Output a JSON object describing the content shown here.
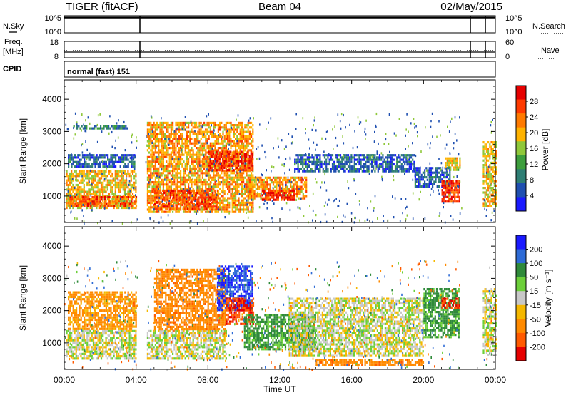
{
  "header": {
    "radar": "TIGER (fitACF)",
    "beam": "Beam 04",
    "date": "02/May/2015"
  },
  "strip_sky": {
    "left_label": "N.Sky",
    "right_label": "N.Search",
    "left_ticks": [
      "10^5",
      "10^0"
    ],
    "right_ticks": [
      "10^5",
      "10^0"
    ]
  },
  "strip_freq": {
    "left_label_1": "Freq.",
    "left_label_2": "[MHz]",
    "right_label": "Nave",
    "left_ticks": [
      "18",
      "8"
    ],
    "right_ticks": [
      "60",
      "0"
    ]
  },
  "strip_cpid": {
    "label": "CPID",
    "text": "normal (fast) 151"
  },
  "x_axis": {
    "title": "Time UT",
    "ticks": [
      "00:00",
      "04:00",
      "08:00",
      "12:00",
      "16:00",
      "20:00",
      "00:00"
    ]
  },
  "chart_data": [
    {
      "type": "heatmap",
      "name": "Power",
      "xlabel": "Time UT",
      "ylabel": "Slant Range [km]",
      "x_range_hours": [
        0,
        24
      ],
      "ylim": [
        180,
        4600
      ],
      "y_ticks": [
        1000,
        2000,
        3000,
        4000
      ],
      "colorbar": {
        "label": "Power [dB]",
        "ticks": [
          4,
          8,
          12,
          16,
          20,
          24,
          28
        ],
        "range": [
          0,
          30
        ],
        "colors": [
          "#1a1aff",
          "#1f4fb0",
          "#2e7e74",
          "#3d9e3d",
          "#8fc83a",
          "#ffb300",
          "#ff7a00",
          "#ff3a00",
          "#e60000"
        ]
      },
      "regions": [
        {
          "t": [
            0.1,
            4.0
          ],
          "r": [
            600,
            1800
          ],
          "level": 18
        },
        {
          "t": [
            0.3,
            4.0
          ],
          "r": [
            700,
            1000
          ],
          "level": 24
        },
        {
          "t": [
            0.2,
            3.9
          ],
          "r": [
            1900,
            2300
          ],
          "level": 6
        },
        {
          "t": [
            0.5,
            3.5
          ],
          "r": [
            3100,
            3200
          ],
          "level": 8
        },
        {
          "t": [
            4.6,
            10.5
          ],
          "r": [
            500,
            3300
          ],
          "level": 20
        },
        {
          "t": [
            5.0,
            8.5
          ],
          "r": [
            600,
            1200
          ],
          "level": 24
        },
        {
          "t": [
            8.0,
            10.5
          ],
          "r": [
            1800,
            2400
          ],
          "level": 26
        },
        {
          "t": [
            10.2,
            13.5
          ],
          "r": [
            900,
            1600
          ],
          "level": 20
        },
        {
          "t": [
            11.0,
            12.8
          ],
          "r": [
            900,
            1200
          ],
          "level": 27
        },
        {
          "t": [
            12.8,
            19.5
          ],
          "r": [
            1800,
            2300
          ],
          "level": 6
        },
        {
          "t": [
            19.5,
            21.5
          ],
          "r": [
            1300,
            1900
          ],
          "level": 6
        },
        {
          "t": [
            21.0,
            22.0
          ],
          "r": [
            800,
            1500
          ],
          "level": 26
        },
        {
          "t": [
            21.2,
            22.0
          ],
          "r": [
            1800,
            2200
          ],
          "level": 17
        },
        {
          "t": [
            23.3,
            24.0
          ],
          "r": [
            700,
            2700
          ],
          "level": 18
        }
      ]
    },
    {
      "type": "heatmap",
      "name": "Velocity",
      "xlabel": "Time UT",
      "ylabel": "Slant Range [km]",
      "x_range_hours": [
        0,
        24
      ],
      "ylim": [
        180,
        4600
      ],
      "y_ticks": [
        1000,
        2000,
        3000,
        4000
      ],
      "colorbar": {
        "label": "Velocity [m s^-1]",
        "ticks": [
          200,
          100,
          50,
          15,
          -15,
          -50,
          -100,
          -200
        ],
        "colors": [
          "#1a1aff",
          "#2e6bd6",
          "#2f8a3a",
          "#6ccf3a",
          "#c8c8c8",
          "#f5b800",
          "#ff8a00",
          "#ff5a00",
          "#e60000"
        ]
      },
      "regions": [
        {
          "t": [
            0.1,
            4.0
          ],
          "r": [
            500,
            1400
          ],
          "level": 0
        },
        {
          "t": [
            0.2,
            4.0
          ],
          "r": [
            1400,
            2600
          ],
          "level": -40
        },
        {
          "t": [
            4.6,
            9.0
          ],
          "r": [
            500,
            1400
          ],
          "level": 0
        },
        {
          "t": [
            5.0,
            9.0
          ],
          "r": [
            1400,
            3300
          ],
          "level": -60
        },
        {
          "t": [
            8.5,
            10.5
          ],
          "r": [
            2000,
            3400
          ],
          "level": 150
        },
        {
          "t": [
            9.0,
            10.5
          ],
          "r": [
            1600,
            2400
          ],
          "level": -150
        },
        {
          "t": [
            10.0,
            14.0
          ],
          "r": [
            800,
            1900
          ],
          "level": 40
        },
        {
          "t": [
            12.5,
            20.0
          ],
          "r": [
            600,
            2400
          ],
          "level": 0
        },
        {
          "t": [
            14.0,
            20.0
          ],
          "r": [
            300,
            500
          ],
          "level": -60
        },
        {
          "t": [
            20.0,
            22.0
          ],
          "r": [
            1200,
            2700
          ],
          "level": 40
        },
        {
          "t": [
            21.0,
            22.0
          ],
          "r": [
            2100,
            2400
          ],
          "level": -150
        },
        {
          "t": [
            23.3,
            24.0
          ],
          "r": [
            600,
            2700
          ],
          "level": 0
        }
      ]
    }
  ]
}
